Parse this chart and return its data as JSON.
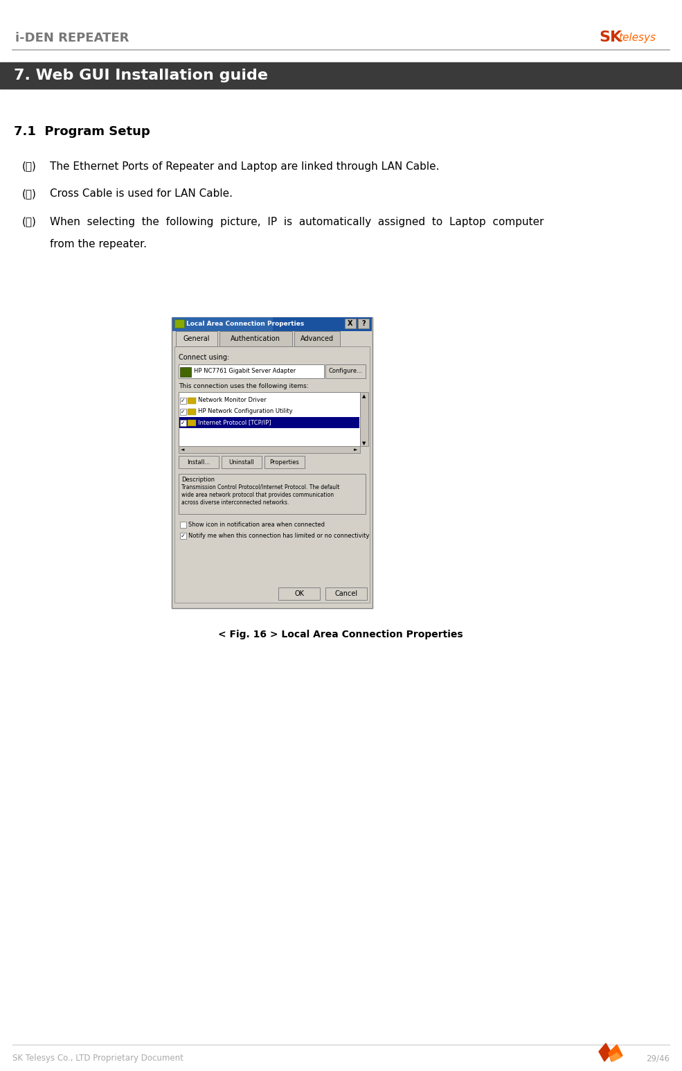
{
  "title_text": "i-DEN REPEATER",
  "section_header_text": "7. Web GUI Installation guide",
  "section_header_bg": "#3a3a3a",
  "section_header_color": "#ffffff",
  "subsection_text": "7.1  Program Setup",
  "bullet1_text": "The Ethernet Ports of Repeater and Laptop are linked through LAN Cable.",
  "bullet2_text": "Cross Cable is used for LAN Cable.",
  "bullet3_line1": "When  selecting  the  following  picture,  IP  is  automatically  assigned  to  Laptop  computer",
  "bullet3_line2": "from the repeater.",
  "fig_caption": "< Fig. 16 > Local Area Connection Properties",
  "footer_left": "SK Telesys Co., LTD Proprietary Document",
  "footer_right": "29/46",
  "bg_color": "#ffffff",
  "text_color": "#000000",
  "footer_color": "#aaaaaa",
  "dialog_bg": "#d4d0c8",
  "dialog_border": "#808080",
  "titlebar_color": "#1a52a0",
  "selected_color": "#000080",
  "white": "#ffffff"
}
